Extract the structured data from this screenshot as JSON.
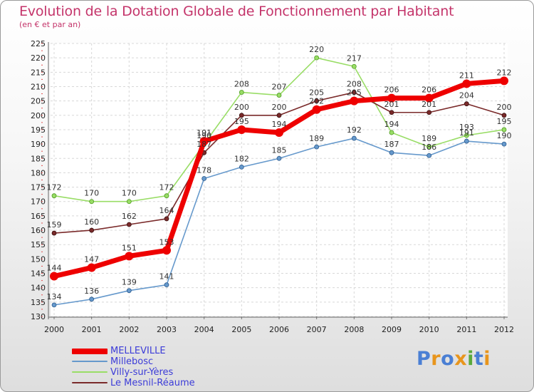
{
  "title": "Evolution de la Dotation Globale de Fonctionnement par Habitant",
  "subtitle": "(en € et par an)",
  "brand": {
    "letters": [
      "P",
      "r",
      "o",
      "x",
      "i",
      "t",
      "i"
    ],
    "colors": [
      "#4a7fd4",
      "#e8951c",
      "#4a7fd4",
      "#e8951c",
      "#5aaa3c",
      "#4a7fd4",
      "#e8951c"
    ]
  },
  "chart_data": {
    "type": "line",
    "title": "Evolution de la Dotation Globale de Fonctionnement par Habitant",
    "ylabel": "(en € et par an)",
    "xlabel": "",
    "x": [
      "2000",
      "2001",
      "2002",
      "2003",
      "2004",
      "2005",
      "2006",
      "2007",
      "2008",
      "2009",
      "2010",
      "2011",
      "2012"
    ],
    "ylim": [
      130,
      225
    ],
    "yticks": [
      130,
      135,
      140,
      145,
      150,
      155,
      160,
      165,
      170,
      175,
      180,
      185,
      190,
      195,
      200,
      205,
      210,
      215,
      220,
      225
    ],
    "grid": true,
    "legend_position": "bottom-left",
    "series": [
      {
        "name": "MELLEVILLE",
        "color": "#ee0000",
        "values": [
          144,
          147,
          151,
          153,
          191,
          195,
          194,
          202,
          205,
          206,
          206,
          211,
          212
        ]
      },
      {
        "name": "Millebosc",
        "color": "#6699cc",
        "values": [
          134,
          136,
          139,
          141,
          178,
          182,
          185,
          189,
          192,
          187,
          186,
          191,
          190
        ]
      },
      {
        "name": "Villy-sur-Yères",
        "color": "#99dd66",
        "values": [
          172,
          170,
          170,
          172,
          190,
          208,
          207,
          220,
          217,
          194,
          189,
          193,
          195
        ]
      },
      {
        "name": "Le Mesnil-Réaume",
        "color": "#7a2a2a",
        "values": [
          159,
          160,
          162,
          164,
          187,
          200,
          200,
          205,
          208,
          201,
          201,
          204,
          200
        ]
      }
    ]
  }
}
